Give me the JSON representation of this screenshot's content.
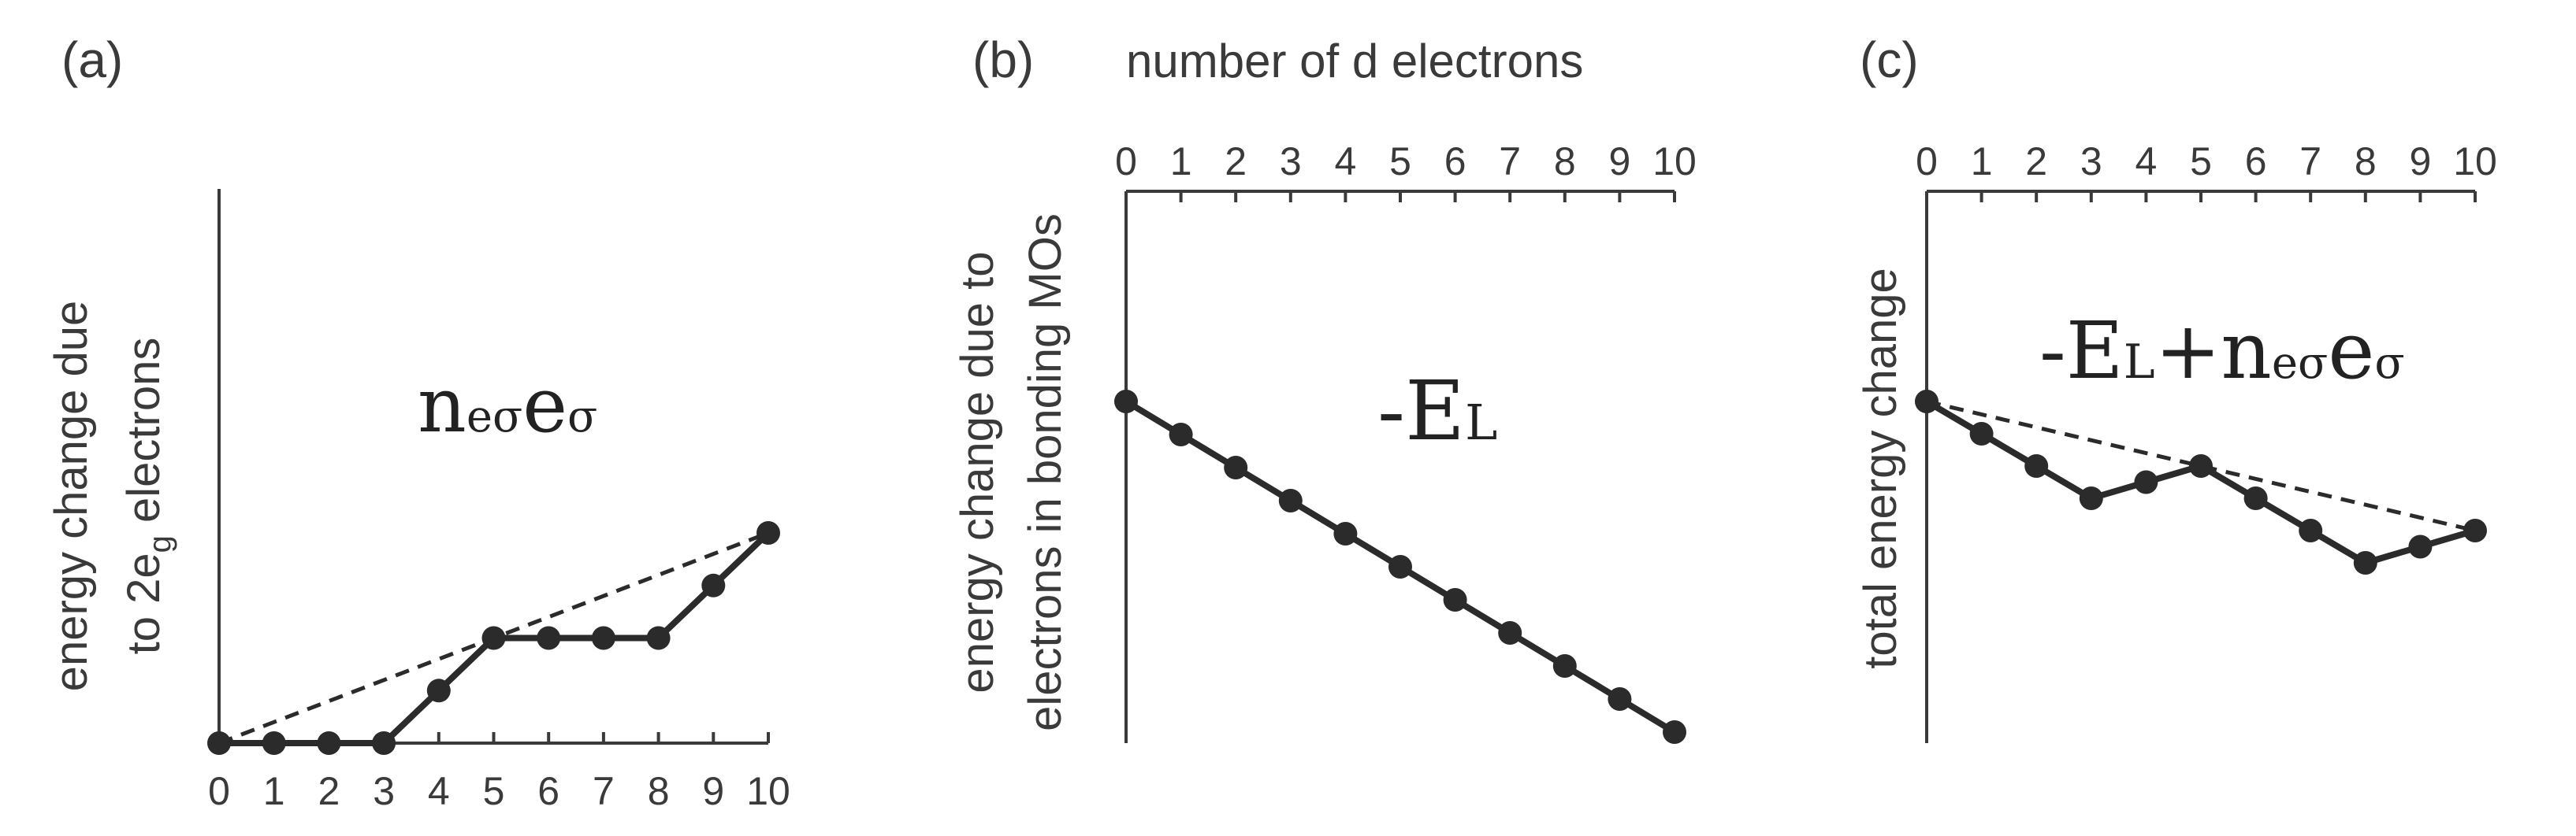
{
  "chart_data": [
    {
      "type": "line",
      "panel_label": "(a)",
      "x": [
        0,
        1,
        2,
        3,
        4,
        5,
        6,
        7,
        8,
        9,
        10
      ],
      "x_tick_labels": [
        "0",
        "1",
        "2",
        "3",
        "4",
        "5",
        "6",
        "7",
        "8",
        "9",
        "10"
      ],
      "x_axis_position": "bottom",
      "ylabel_line1": "energy change due",
      "ylabel_line2_prefix": "to 2e",
      "ylabel_line2_subscript": "g",
      "ylabel_line2_suffix": " electrons",
      "annotation": {
        "main": "n",
        "sub": "eσ",
        "main2": "e",
        "sub2": "σ"
      },
      "series": [
        {
          "values": [
            0,
            0,
            0,
            0,
            1,
            2,
            2,
            2,
            2,
            3,
            4
          ],
          "style": "solid-with-markers"
        },
        {
          "values": [
            0,
            4
          ],
          "x": [
            0,
            10
          ],
          "style": "dashed"
        }
      ],
      "ylim": [
        0,
        4
      ],
      "grid": false
    },
    {
      "type": "line",
      "panel_label": "(b)",
      "top_title": "number of d electrons",
      "x": [
        0,
        1,
        2,
        3,
        4,
        5,
        6,
        7,
        8,
        9,
        10
      ],
      "x_tick_labels": [
        "0",
        "1",
        "2",
        "3",
        "4",
        "5",
        "6",
        "7",
        "8",
        "9",
        "10"
      ],
      "x_axis_position": "top",
      "ylabel_line1": "energy change due to",
      "ylabel_line2": "electrons in bonding MOs",
      "annotation": {
        "prefix": "-E",
        "sub": "L"
      },
      "series": [
        {
          "values": [
            0,
            -1,
            -2,
            -3,
            -4,
            -5,
            -6,
            -7,
            -8,
            -9,
            -10
          ],
          "style": "solid-with-markers"
        }
      ],
      "ylim": [
        -10.4,
        10.4
      ],
      "grid": false
    },
    {
      "type": "line",
      "panel_label": "(c)",
      "x": [
        0,
        1,
        2,
        3,
        4,
        5,
        6,
        7,
        8,
        9,
        10
      ],
      "x_tick_labels": [
        "0",
        "1",
        "2",
        "3",
        "4",
        "5",
        "6",
        "7",
        "8",
        "9",
        "10"
      ],
      "x_axis_position": "top",
      "ylabel": "total energy change",
      "annotation": {
        "prefix": "-E",
        "sub": "L",
        "plus": "+n",
        "sub2": "eσ",
        "e": "e",
        "sub3": "σ"
      },
      "series": [
        {
          "values": [
            0,
            -1,
            -2,
            -3,
            -2.5,
            -2,
            -3,
            -4,
            -5,
            -4.5,
            -4
          ],
          "style": "solid-with-markers"
        },
        {
          "values": [
            0,
            -4
          ],
          "x": [
            0,
            10
          ],
          "style": "dashed"
        }
      ],
      "ylim": [
        -10.4,
        2.3
      ],
      "grid": false
    }
  ]
}
